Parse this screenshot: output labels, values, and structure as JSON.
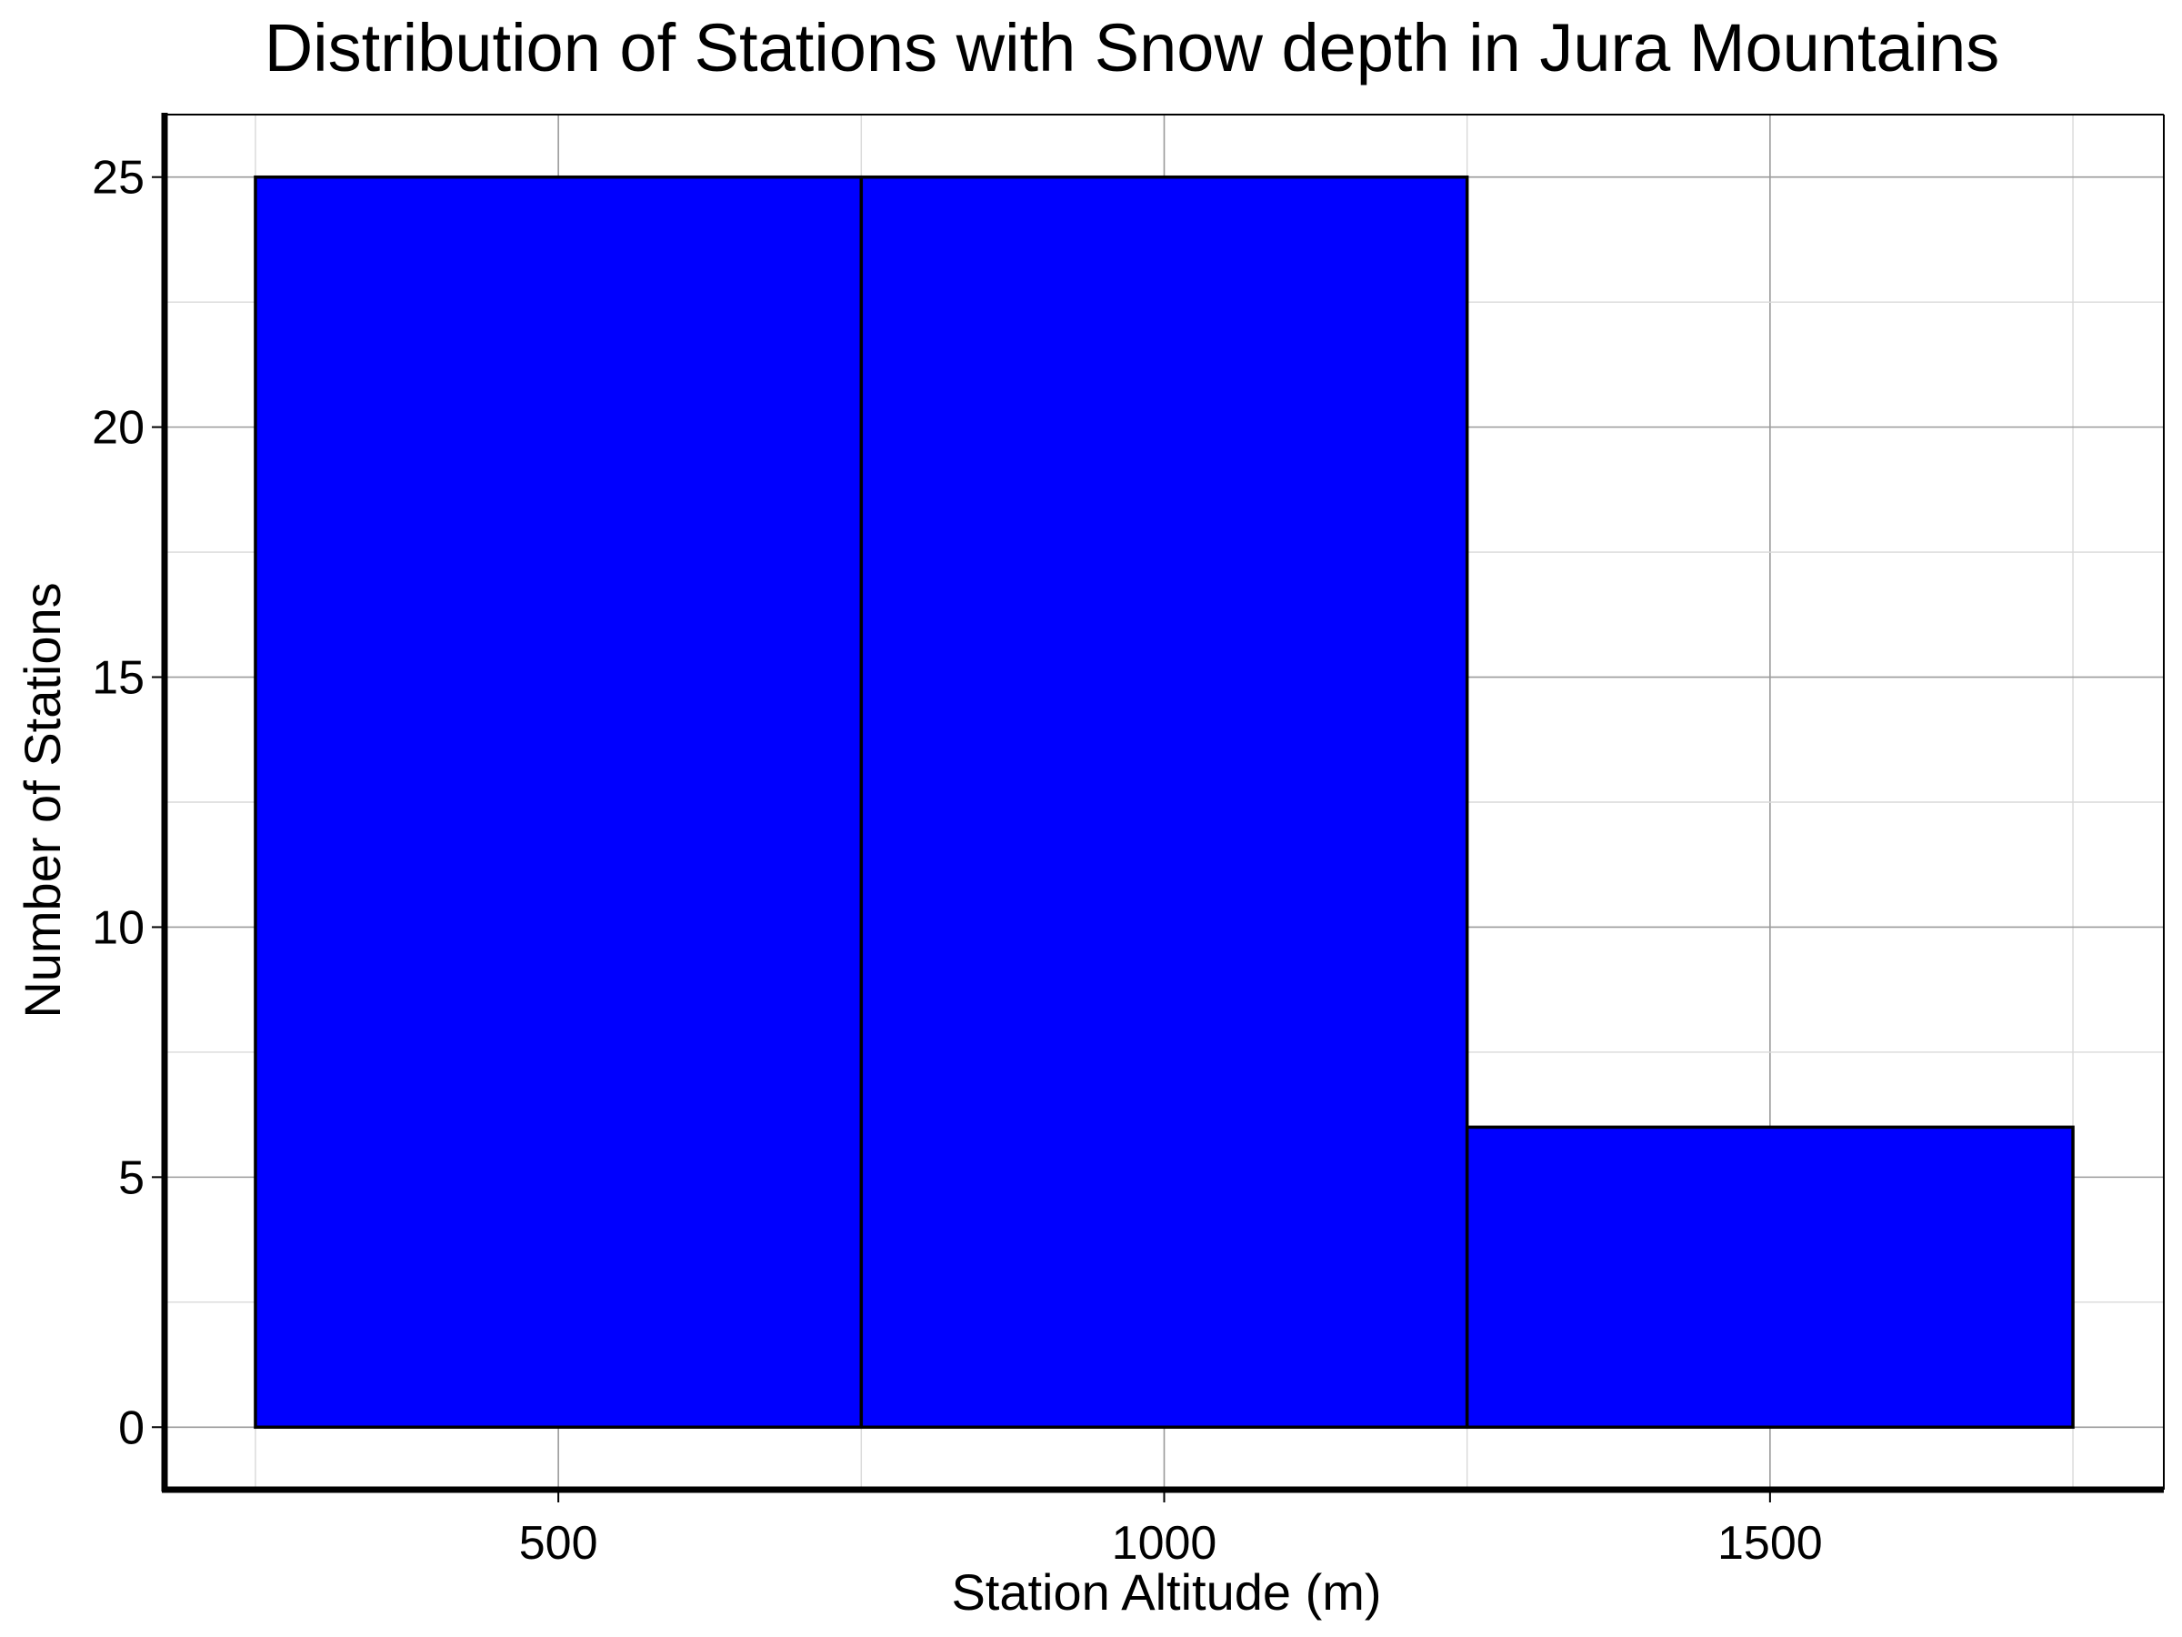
{
  "chart_data": {
    "type": "bar",
    "title": "Distribution of Stations with Snow depth in Jura Mountains",
    "xlabel": "Station Altitude (m)",
    "ylabel": "Number of Stations",
    "bins": [
      {
        "start": 250,
        "end": 750,
        "count": 25
      },
      {
        "start": 750,
        "end": 1250,
        "count": 25
      },
      {
        "start": 1250,
        "end": 1750,
        "count": 6
      }
    ],
    "xlim": [
      175,
      1825
    ],
    "ylim": [
      -1.25,
      26.25
    ],
    "x_ticks": [
      500,
      1000,
      1500
    ],
    "y_ticks": [
      0,
      5,
      10,
      15,
      20,
      25
    ],
    "grid": true,
    "bar_color": "#0000ff",
    "edge_color": "#000000"
  }
}
